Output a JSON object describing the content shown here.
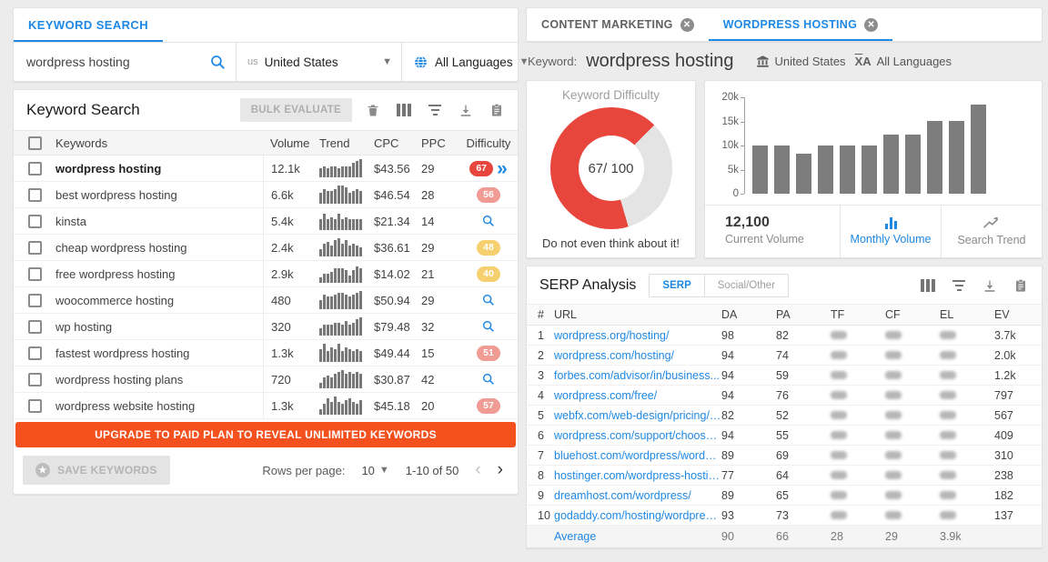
{
  "colors": {
    "accent_blue": "#1e88e5",
    "upgrade_orange": "#f4511e",
    "difficulty_red": "#e8453c",
    "difficulty_pink": "#f09b94",
    "difficulty_yellow": "#f6cf6e",
    "chart_bar_gray": "#7d7d7d"
  },
  "left": {
    "tab_label": "KEYWORD SEARCH",
    "search_value": "wordpress hosting",
    "country_code": "us",
    "country_label": "United States",
    "language_label": "All Languages",
    "table_title": "Keyword Search",
    "bulk_evaluate_label": "BULK EVALUATE",
    "columns": {
      "keywords": "Keywords",
      "volume": "Volume",
      "trend": "Trend",
      "cpc": "CPC",
      "ppc": "PPC",
      "difficulty": "Difficulty"
    },
    "rows": [
      {
        "keyword": "wordpress hosting",
        "bold": true,
        "volume": "12.1k",
        "cpc": "$43.56",
        "ppc": "29",
        "difficulty": "67",
        "badge": "red",
        "expand": true,
        "trend": [
          5,
          6,
          5,
          6,
          6,
          5,
          6,
          6,
          6,
          8,
          9,
          10
        ]
      },
      {
        "keyword": "best wordpress hosting",
        "volume": "6.6k",
        "cpc": "$46.54",
        "ppc": "28",
        "difficulty": "56",
        "badge": "pink",
        "trend": [
          6,
          8,
          7,
          7,
          8,
          10,
          10,
          9,
          6,
          7,
          8,
          7
        ]
      },
      {
        "keyword": "kinsta",
        "volume": "5.4k",
        "cpc": "$21.34",
        "ppc": "14",
        "badge": "search",
        "trend": [
          6,
          9,
          6,
          7,
          6,
          9,
          6,
          7,
          6,
          6,
          6,
          6
        ]
      },
      {
        "keyword": "cheap wordpress hosting",
        "volume": "2.4k",
        "cpc": "$36.61",
        "ppc": "29",
        "difficulty": "48",
        "badge": "yellow",
        "trend": [
          4,
          7,
          8,
          6,
          9,
          10,
          7,
          9,
          6,
          7,
          6,
          5
        ]
      },
      {
        "keyword": "free wordpress hosting",
        "volume": "2.9k",
        "cpc": "$14.02",
        "ppc": "21",
        "difficulty": "40",
        "badge": "yellow",
        "trend": [
          3,
          5,
          5,
          6,
          8,
          8,
          8,
          7,
          4,
          7,
          9,
          8
        ]
      },
      {
        "keyword": "woocommerce hosting",
        "volume": "480",
        "cpc": "$50.94",
        "ppc": "29",
        "badge": "search",
        "trend": [
          5,
          8,
          7,
          7,
          8,
          9,
          9,
          8,
          7,
          8,
          9,
          10
        ]
      },
      {
        "keyword": "wp hosting",
        "volume": "320",
        "cpc": "$79.48",
        "ppc": "32",
        "badge": "search",
        "trend": [
          4,
          6,
          6,
          6,
          7,
          7,
          6,
          8,
          6,
          7,
          9,
          10
        ]
      },
      {
        "keyword": "fastest wordpress hosting",
        "volume": "1.3k",
        "cpc": "$49.44",
        "ppc": "15",
        "difficulty": "51",
        "badge": "pink",
        "trend": [
          7,
          10,
          6,
          8,
          7,
          10,
          6,
          8,
          7,
          6,
          7,
          6
        ]
      },
      {
        "keyword": "wordpress hosting plans",
        "volume": "720",
        "cpc": "$30.87",
        "ppc": "42",
        "badge": "search",
        "trend": [
          3,
          6,
          7,
          6,
          8,
          9,
          10,
          8,
          9,
          8,
          9,
          8
        ]
      },
      {
        "keyword": "wordpress website hosting",
        "volume": "1.3k",
        "cpc": "$45.18",
        "ppc": "20",
        "difficulty": "57",
        "badge": "pink",
        "trend": [
          3,
          6,
          9,
          7,
          10,
          7,
          6,
          8,
          9,
          7,
          6,
          8
        ]
      }
    ],
    "upgrade_label": "UPGRADE TO PAID PLAN TO REVEAL UNLIMITED KEYWORDS",
    "save_label": "SAVE KEYWORDS",
    "rows_per_page_label": "Rows per page:",
    "rows_per_page_value": "10",
    "range_label": "1-10 of 50"
  },
  "right": {
    "tabs": [
      {
        "label": "CONTENT MARKETING",
        "active": false
      },
      {
        "label": "WORDPRESS HOSTING",
        "active": true
      }
    ],
    "keyword_prefix": "Keyword:",
    "keyword": "wordpress hosting",
    "country_label": "United States",
    "language_label": "All Languages",
    "difficulty": {
      "title": "Keyword Difficulty",
      "score_label": "67/ 100",
      "percent": 67,
      "verdict": "Do not even think about it!"
    },
    "volume": {
      "current_value": "12,100",
      "current_label": "Current Volume",
      "buttons": [
        {
          "label": "Monthly Volume",
          "active": true
        },
        {
          "label": "Search Trend",
          "active": false
        }
      ]
    },
    "serp": {
      "title": "SERP Analysis",
      "toggle": [
        {
          "label": "SERP",
          "active": true
        },
        {
          "label": "Social/Other",
          "active": false
        }
      ],
      "columns": {
        "num": "#",
        "url": "URL",
        "da": "DA",
        "pa": "PA",
        "tf": "TF",
        "cf": "CF",
        "el": "EL",
        "ev": "EV"
      },
      "rows": [
        {
          "num": "1",
          "url": "wordpress.org/hosting/",
          "da": "98",
          "pa": "82",
          "ev": "3.7k"
        },
        {
          "num": "2",
          "url": "wordpress.com/hosting/",
          "da": "94",
          "pa": "74",
          "ev": "2.0k"
        },
        {
          "num": "3",
          "url": "forbes.com/advisor/in/business...",
          "da": "94",
          "pa": "59",
          "ev": "1.2k"
        },
        {
          "num": "4",
          "url": "wordpress.com/free/",
          "da": "94",
          "pa": "76",
          "ev": "797"
        },
        {
          "num": "5",
          "url": "webfx.com/web-design/pricing/w...",
          "da": "82",
          "pa": "52",
          "ev": "567"
        },
        {
          "num": "6",
          "url": "wordpress.com/support/choose-a...",
          "da": "94",
          "pa": "55",
          "ev": "409"
        },
        {
          "num": "7",
          "url": "bluehost.com/wordpress/wordpre...",
          "da": "89",
          "pa": "69",
          "ev": "310"
        },
        {
          "num": "8",
          "url": "hostinger.com/wordpress-hostin...",
          "da": "77",
          "pa": "64",
          "ev": "238"
        },
        {
          "num": "9",
          "url": "dreamhost.com/wordpress/",
          "da": "89",
          "pa": "65",
          "ev": "182"
        },
        {
          "num": "10",
          "url": "godaddy.com/hosting/wordpress-...",
          "da": "93",
          "pa": "73",
          "ev": "137"
        }
      ],
      "average": {
        "label": "Average",
        "da": "90",
        "pa": "66",
        "tf": "28",
        "cf": "29",
        "el": "3.9k",
        "ev": ""
      }
    }
  },
  "chart_data": {
    "type": "bar",
    "title": "Monthly search volume for wordpress hosting",
    "x": [
      1,
      2,
      3,
      4,
      5,
      6,
      7,
      8,
      9,
      10,
      11
    ],
    "values": [
      9900,
      9900,
      8100,
      9900,
      9900,
      9900,
      12100,
      12100,
      14800,
      14800,
      18100
    ],
    "ylabel": "",
    "xlabel": "",
    "ylim": [
      0,
      20000
    ],
    "yticks": [
      "20k",
      "15k",
      "10k",
      "5k",
      "0"
    ],
    "grid": false,
    "legend": "none"
  }
}
